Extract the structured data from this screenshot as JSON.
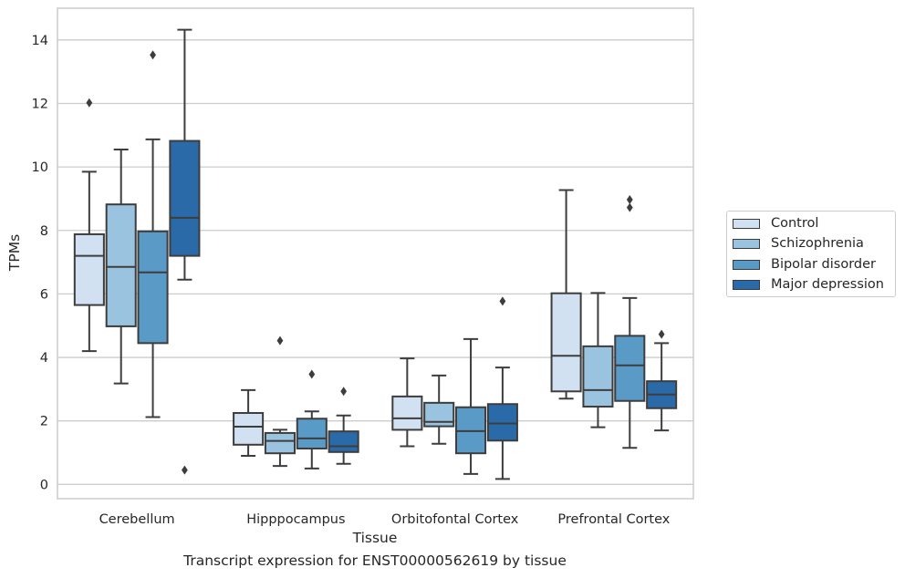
{
  "caption": "Transcript expression for ENST00000562619 by tissue",
  "chart_data": {
    "type": "box",
    "xlabel": "Tissue",
    "ylabel": "TPMs",
    "ylim": [
      -0.45,
      15.0
    ],
    "yticks": [
      0,
      2,
      4,
      6,
      8,
      10,
      12,
      14
    ],
    "grid": "horizontal",
    "legend_position": "right",
    "categories": [
      "Cerebellum",
      "Hipppocampus",
      "Orbitofontal Cortex",
      "Prefrontal Cortex"
    ],
    "series": [
      {
        "name": "Control",
        "color": "#d1e1f1",
        "boxes": [
          {
            "whislo": 4.2,
            "q1": 5.65,
            "med": 7.2,
            "q3": 7.88,
            "whishi": 9.85,
            "fliers": [
              12.02
            ]
          },
          {
            "whislo": 0.9,
            "q1": 1.25,
            "med": 1.82,
            "q3": 2.25,
            "whishi": 2.97,
            "fliers": []
          },
          {
            "whislo": 1.2,
            "q1": 1.72,
            "med": 2.08,
            "q3": 2.77,
            "whishi": 3.97,
            "fliers": []
          },
          {
            "whislo": 2.7,
            "q1": 2.93,
            "med": 4.05,
            "q3": 6.02,
            "whishi": 9.27,
            "fliers": []
          }
        ]
      },
      {
        "name": "Schizophrenia",
        "color": "#9ac3df",
        "boxes": [
          {
            "whislo": 3.18,
            "q1": 4.98,
            "med": 6.85,
            "q3": 8.82,
            "whishi": 10.55,
            "fliers": []
          },
          {
            "whislo": 0.58,
            "q1": 0.98,
            "med": 1.37,
            "q3": 1.62,
            "whishi": 1.72,
            "fliers": [
              4.53
            ]
          },
          {
            "whislo": 1.28,
            "q1": 1.83,
            "med": 1.97,
            "q3": 2.57,
            "whishi": 3.43,
            "fliers": []
          },
          {
            "whislo": 1.8,
            "q1": 2.45,
            "med": 2.97,
            "q3": 4.35,
            "whishi": 6.03,
            "fliers": []
          }
        ]
      },
      {
        "name": "Bipolar disorder",
        "color": "#5a9ac7",
        "boxes": [
          {
            "whislo": 2.12,
            "q1": 4.45,
            "med": 6.68,
            "q3": 7.97,
            "whishi": 10.87,
            "fliers": [
              13.53
            ]
          },
          {
            "whislo": 0.5,
            "q1": 1.13,
            "med": 1.45,
            "q3": 2.07,
            "whishi": 2.3,
            "fliers": [
              3.47
            ]
          },
          {
            "whislo": 0.33,
            "q1": 0.98,
            "med": 1.68,
            "q3": 2.43,
            "whishi": 4.58,
            "fliers": []
          },
          {
            "whislo": 1.15,
            "q1": 2.63,
            "med": 3.75,
            "q3": 4.68,
            "whishi": 5.87,
            "fliers": [
              8.72,
              8.97
            ]
          }
        ]
      },
      {
        "name": "Major depression",
        "color": "#2a6aa9",
        "boxes": [
          {
            "whislo": 6.45,
            "q1": 7.2,
            "med": 8.4,
            "q3": 10.82,
            "whishi": 14.32,
            "fliers": [
              0.45
            ]
          },
          {
            "whislo": 0.65,
            "q1": 1.02,
            "med": 1.2,
            "q3": 1.67,
            "whishi": 2.17,
            "fliers": [
              2.93
            ]
          },
          {
            "whislo": 0.17,
            "q1": 1.38,
            "med": 1.92,
            "q3": 2.53,
            "whishi": 3.68,
            "fliers": [
              5.77
            ]
          },
          {
            "whislo": 1.7,
            "q1": 2.4,
            "med": 2.83,
            "q3": 3.25,
            "whishi": 4.45,
            "fliers": [
              4.73
            ]
          }
        ]
      }
    ]
  }
}
